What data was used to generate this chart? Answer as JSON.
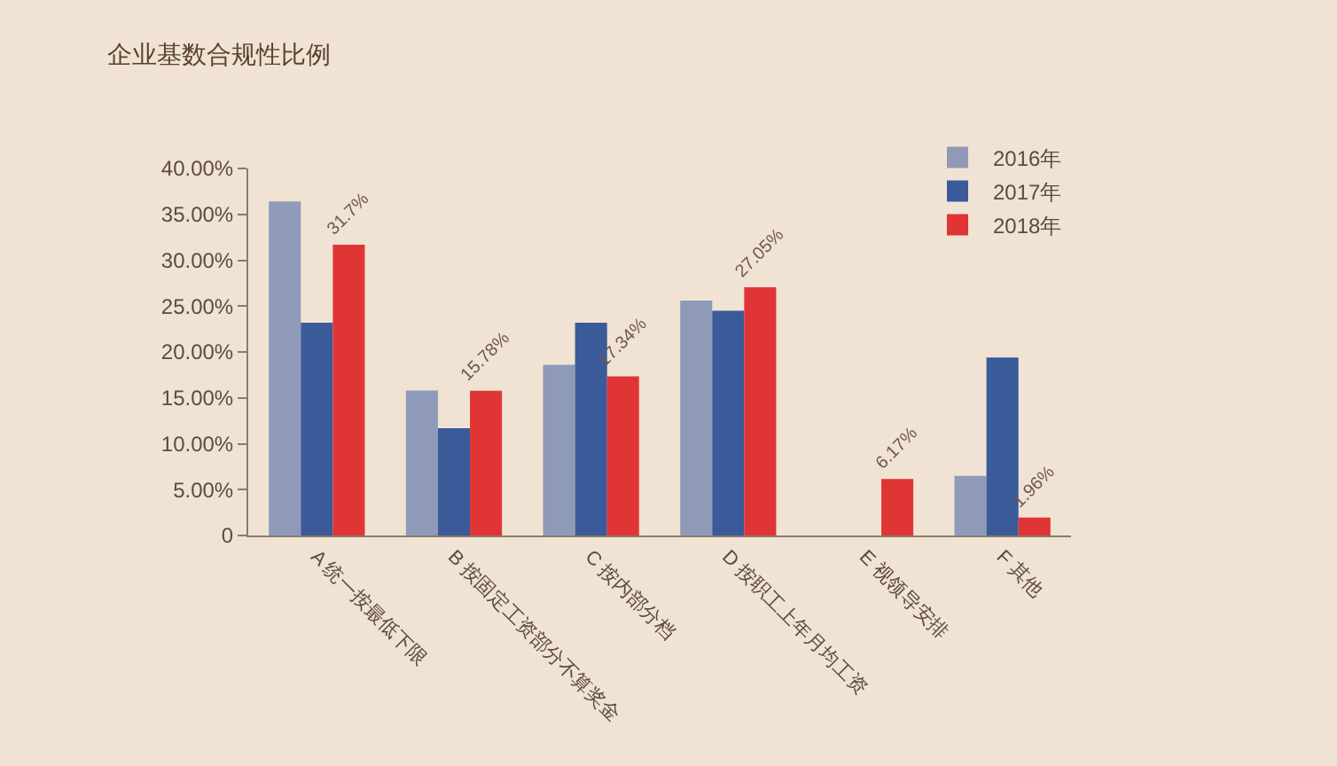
{
  "chart_data": {
    "type": "bar",
    "title": "企业基数合规性比例",
    "categories": [
      "A 统一按最低下限",
      "B 按固定工资部分不算奖金",
      "C 按内部分档",
      "D 按职工上年月均工资",
      "E 视领导安排",
      "F 其他"
    ],
    "series": [
      {
        "name": "2016年",
        "color": "#8e9ab8",
        "values": [
          36.4,
          15.8,
          18.6,
          25.6,
          null,
          6.5
        ]
      },
      {
        "name": "2017年",
        "color": "#3a5a9a",
        "values": [
          23.2,
          11.7,
          23.2,
          24.5,
          null,
          19.4
        ]
      },
      {
        "name": "2018年",
        "color": "#e03535",
        "values": [
          31.7,
          15.78,
          17.34,
          27.05,
          6.17,
          1.96
        ],
        "value_labels": [
          "31.7%",
          "15.78%",
          "17.34%",
          "27.05%",
          "6.17%",
          "1.96%"
        ]
      }
    ],
    "ylim": [
      0,
      40
    ],
    "yticks": [
      {
        "value": 0,
        "label": "0"
      },
      {
        "value": 5,
        "label": "5.00%"
      },
      {
        "value": 10,
        "label": "10.00%"
      },
      {
        "value": 15,
        "label": "15.00%"
      },
      {
        "value": 20,
        "label": "20.00%"
      },
      {
        "value": 25,
        "label": "25.00%"
      },
      {
        "value": 30,
        "label": "30.00%"
      },
      {
        "value": 35,
        "label": "35.00%"
      },
      {
        "value": 40,
        "label": "40.00%"
      }
    ],
    "grid": false,
    "legend": "top right"
  }
}
